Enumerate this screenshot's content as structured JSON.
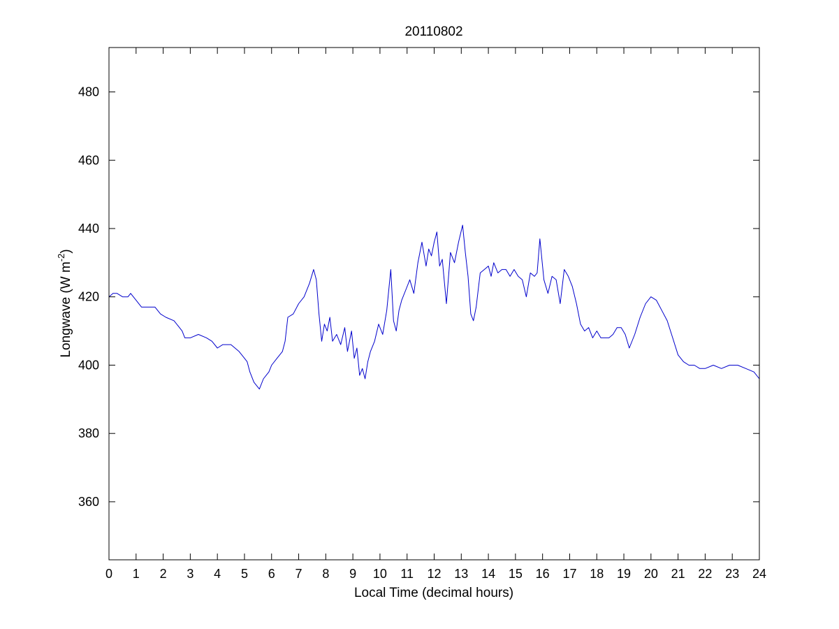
{
  "chart_data": {
    "type": "line",
    "title": "20110802",
    "xlabel": "Local Time (decimal hours)",
    "ylabel": {
      "prefix": "Longwave (W m",
      "superscript": "-2",
      "suffix": ")"
    },
    "xlim": [
      0,
      24
    ],
    "ylim": [
      343,
      493
    ],
    "x_ticks": [
      0,
      1,
      2,
      3,
      4,
      5,
      6,
      7,
      8,
      9,
      10,
      11,
      12,
      13,
      14,
      15,
      16,
      17,
      18,
      19,
      20,
      21,
      22,
      23,
      24
    ],
    "y_ticks": [
      360,
      380,
      400,
      420,
      440,
      460,
      480
    ],
    "grid": false,
    "series_color": "#0000cc",
    "series": [
      {
        "x": [
          0,
          0.15,
          0.3,
          0.5,
          0.7,
          0.8,
          1.0,
          1.2,
          1.5,
          1.7,
          1.9,
          2.1,
          2.4,
          2.7,
          2.8,
          3.0,
          3.3,
          3.6,
          3.8,
          4.0,
          4.2,
          4.5,
          4.8,
          5.0,
          5.1,
          5.2,
          5.35,
          5.45,
          5.55,
          5.7,
          5.9,
          6.0,
          6.2,
          6.4,
          6.5,
          6.6,
          6.8,
          7.0,
          7.2,
          7.4,
          7.55,
          7.65,
          7.75,
          7.85,
          7.95,
          8.05,
          8.15,
          8.25,
          8.4,
          8.55,
          8.7,
          8.8,
          8.95,
          9.05,
          9.15,
          9.25,
          9.35,
          9.45,
          9.55,
          9.65,
          9.8,
          9.95,
          10.1,
          10.25,
          10.4,
          10.5,
          10.6,
          10.7,
          10.8,
          10.95,
          11.1,
          11.25,
          11.4,
          11.55,
          11.7,
          11.8,
          11.9,
          12.0,
          12.1,
          12.2,
          12.3,
          12.45,
          12.6,
          12.75,
          12.9,
          13.05,
          13.15,
          13.25,
          13.35,
          13.45,
          13.55,
          13.7,
          13.85,
          14.0,
          14.1,
          14.2,
          14.35,
          14.5,
          14.65,
          14.8,
          14.95,
          15.1,
          15.25,
          15.4,
          15.55,
          15.7,
          15.8,
          15.9,
          16.05,
          16.2,
          16.35,
          16.5,
          16.65,
          16.8,
          16.95,
          17.1,
          17.25,
          17.4,
          17.55,
          17.7,
          17.85,
          18.0,
          18.15,
          18.3,
          18.45,
          18.6,
          18.75,
          18.9,
          19.05,
          19.2,
          19.4,
          19.6,
          19.8,
          20.0,
          20.2,
          20.4,
          20.6,
          20.8,
          21.0,
          21.2,
          21.4,
          21.6,
          21.8,
          22.0,
          22.3,
          22.6,
          22.9,
          23.2,
          23.5,
          23.8,
          24.0
        ],
        "y": [
          420,
          421,
          421,
          420,
          420,
          421,
          419,
          417,
          417,
          417,
          415,
          414,
          413,
          410,
          408,
          408,
          409,
          408,
          407,
          405,
          406,
          406,
          404,
          402,
          401,
          398,
          395,
          394,
          393,
          396,
          398,
          400,
          402,
          404,
          407,
          414,
          415,
          418,
          420,
          424,
          428,
          425,
          415,
          407,
          412,
          410,
          414,
          407,
          409,
          406,
          411,
          404,
          410,
          402,
          405,
          397,
          399,
          396,
          401,
          404,
          407,
          412,
          409,
          416,
          428,
          413,
          410,
          416,
          419,
          422,
          425,
          421,
          430,
          436,
          429,
          434,
          432,
          436,
          439,
          429,
          431,
          418,
          433,
          430,
          436,
          441,
          433,
          426,
          415,
          413,
          417,
          427,
          428,
          429,
          426,
          430,
          427,
          428,
          428,
          426,
          428,
          426,
          425,
          420,
          427,
          426,
          427,
          437,
          425,
          421,
          426,
          425,
          418,
          428,
          426,
          423,
          418,
          412,
          410,
          411,
          408,
          410,
          408,
          408,
          408,
          409,
          411,
          411,
          409,
          405,
          409,
          414,
          418,
          420,
          419,
          416,
          413,
          408,
          403,
          401,
          400,
          400,
          399,
          399,
          400,
          399,
          400,
          400,
          399,
          398,
          396
        ]
      }
    ]
  }
}
